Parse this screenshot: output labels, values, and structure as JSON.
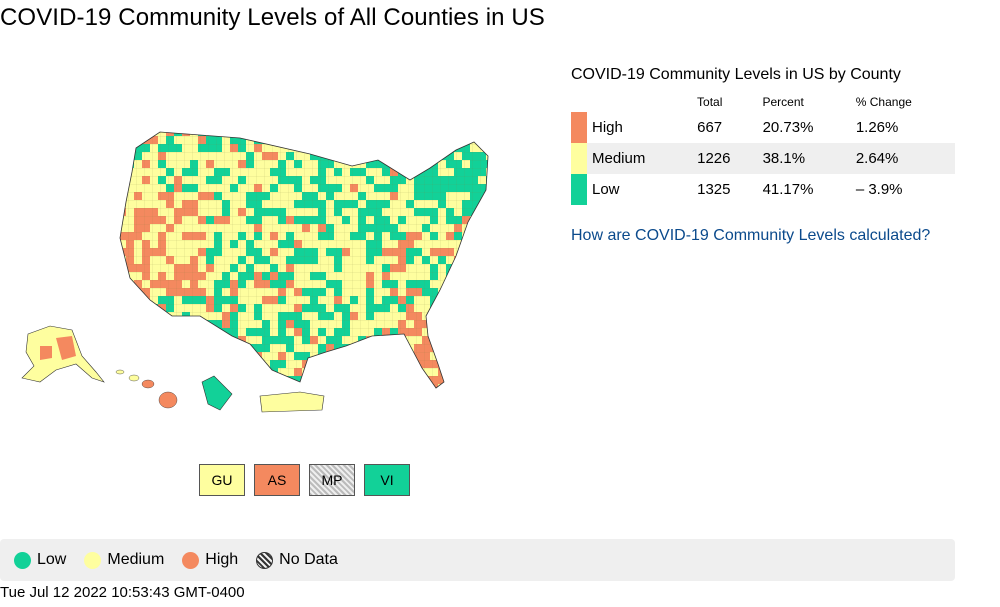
{
  "page": {
    "title": "COVID-19 Community Levels of All Counties in US"
  },
  "colors": {
    "high": "#f4895f",
    "medium": "#fefe9f",
    "low": "#12d198",
    "no_data": "#cccccc"
  },
  "summary": {
    "title": "COVID-19 Community Levels in US by County",
    "headers": {
      "total": "Total",
      "percent": "Percent",
      "change": "% Change"
    },
    "rows": [
      {
        "level": "High",
        "total": "667",
        "percent": "20.73%",
        "change": "1.26%"
      },
      {
        "level": "Medium",
        "total": "1226",
        "percent": "38.1%",
        "change": "2.64%"
      },
      {
        "level": "Low",
        "total": "1325",
        "percent": "41.17%",
        "change": "– 3.9%"
      }
    ],
    "link_text": "How are COVID-19 Community Levels calculated?"
  },
  "territories": [
    {
      "code": "GU",
      "level": "medium"
    },
    {
      "code": "AS",
      "level": "high"
    },
    {
      "code": "MP",
      "level": "no_data"
    },
    {
      "code": "VI",
      "level": "low"
    }
  ],
  "legend": {
    "low": "Low",
    "medium": "Medium",
    "high": "High",
    "no_data": "No Data"
  },
  "timestamp": "Tue Jul 12 2022 10:53:43 GMT-0400"
}
